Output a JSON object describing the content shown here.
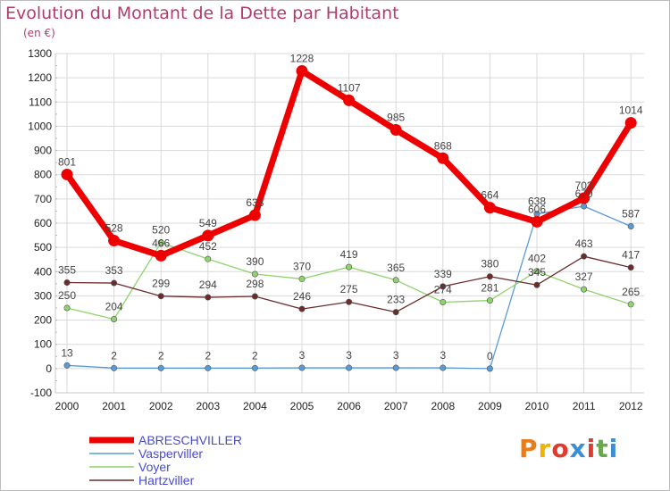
{
  "title": "Evolution du Montant de la Dette par Habitant",
  "subtitle": "(en €)",
  "logo_text": "Proxiti",
  "logo_colors": [
    "#e87d1e",
    "#f2b300",
    "#e23a2c",
    "#3a8fd6",
    "#e23a2c",
    "#6aa84f",
    "#3a8fd6"
  ],
  "chart_data": {
    "type": "line",
    "x": [
      "2000",
      "2001",
      "2002",
      "2003",
      "2004",
      "2005",
      "2006",
      "2007",
      "2008",
      "2009",
      "2010",
      "2011",
      "2012"
    ],
    "ylim": [
      -100,
      1300
    ],
    "yticks": [
      "-100",
      "0",
      "100",
      "200",
      "300",
      "400",
      "500",
      "600",
      "700",
      "800",
      "900",
      "1000",
      "1100",
      "1200",
      "1300"
    ],
    "grid": true,
    "legend_position": "bottom-left",
    "series": [
      {
        "name": "Vasperviller",
        "color": "#5b9bd5",
        "labels": [
          "13",
          "2",
          "2",
          "2",
          "2",
          "3",
          "3",
          "3",
          "3",
          "0",
          "638",
          "670",
          "587"
        ],
        "values": [
          13,
          2,
          2,
          2,
          2,
          3,
          3,
          3,
          3,
          0,
          638,
          670,
          587
        ]
      },
      {
        "name": "Voyer",
        "color": "#8ed36b",
        "labels": [
          "250",
          "204",
          "520",
          "452",
          "390",
          "370",
          "419",
          "365",
          "274",
          "281",
          "402",
          "327",
          "265"
        ],
        "values": [
          250,
          204,
          520,
          452,
          390,
          370,
          419,
          365,
          274,
          281,
          402,
          327,
          265
        ]
      },
      {
        "name": "Hartzviller",
        "color": "#6b2c2c",
        "labels": [
          "355",
          "353",
          "299",
          "294",
          "298",
          "246",
          "275",
          "233",
          "339",
          "380",
          "345",
          "463",
          "417"
        ],
        "values": [
          355,
          353,
          299,
          294,
          298,
          246,
          275,
          233,
          339,
          380,
          345,
          463,
          417
        ]
      },
      {
        "name": "ABRESCHVILLER",
        "color": "#ee0000",
        "labels": [
          "801",
          "528",
          "466",
          "549",
          "633",
          "1228",
          "1107",
          "985",
          "868",
          "664",
          "606",
          "703",
          "1014"
        ],
        "values": [
          801,
          528,
          466,
          549,
          633,
          1228,
          1107,
          985,
          868,
          664,
          606,
          703,
          1014
        ]
      }
    ]
  }
}
